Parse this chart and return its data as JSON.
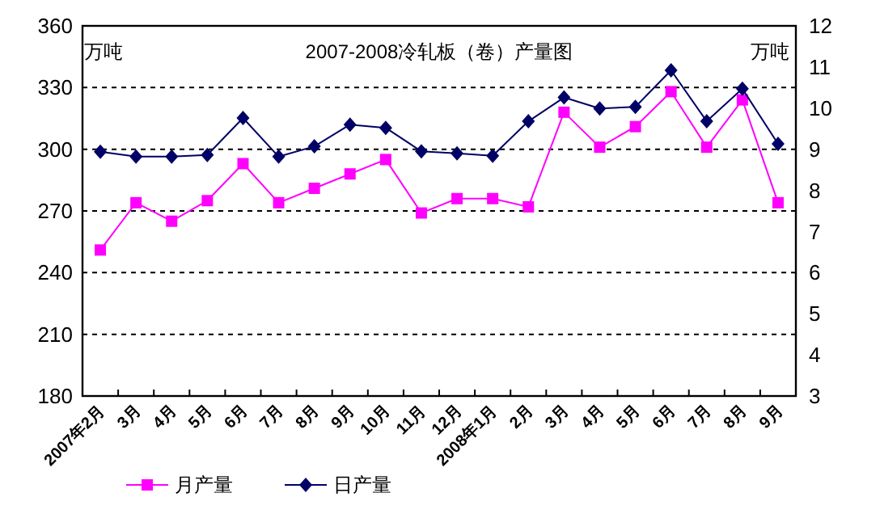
{
  "chart_data": {
    "type": "line",
    "title": "2007-2008冷轧板（卷）产量图",
    "ylabel": "万吨",
    "y2label": "万吨",
    "categories": [
      "2007年2月",
      "3月",
      "4月",
      "5月",
      "6月",
      "7月",
      "8月",
      "9月",
      "10月",
      "11月",
      "12月",
      "2008年1月",
      "2月",
      "3月",
      "4月",
      "5月",
      "6月",
      "7月",
      "8月",
      "9月"
    ],
    "series": [
      {
        "name": "月产量",
        "color": "#ff00ff",
        "marker": "square",
        "values": [
          251,
          274,
          265,
          275,
          293,
          274,
          281,
          288,
          295,
          269,
          276,
          276,
          272,
          318,
          301,
          311,
          328,
          301,
          324,
          274
        ]
      },
      {
        "name": "日产量",
        "color": "#000066",
        "marker": "diamond",
        "axis": "y2",
        "values": [
          8.94,
          8.82,
          8.82,
          8.86,
          9.76,
          8.82,
          9.07,
          9.6,
          9.52,
          8.95,
          8.9,
          8.84,
          9.68,
          10.26,
          9.99,
          10.03,
          10.92,
          9.68,
          10.47,
          9.13
        ]
      }
    ],
    "ylim": [
      180,
      360
    ],
    "yticks": [
      180,
      210,
      240,
      270,
      300,
      330,
      360
    ],
    "y2lim": [
      3,
      12
    ],
    "y2ticks": [
      3,
      4,
      5,
      6,
      7,
      8,
      9,
      10,
      11,
      12
    ],
    "grid": "y",
    "legend": "bottom"
  }
}
